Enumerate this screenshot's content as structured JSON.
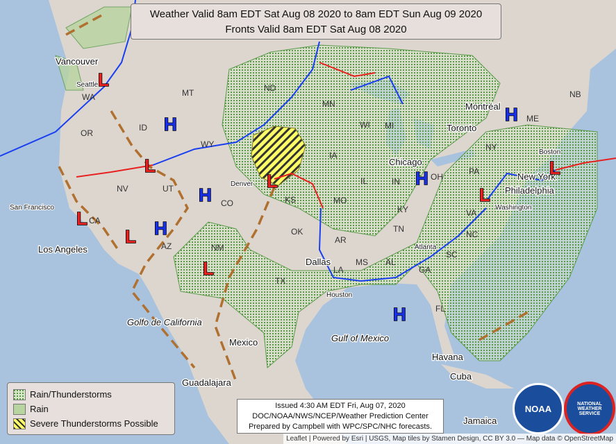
{
  "header": {
    "line1": "Weather Valid 8am EDT Sat Aug 08 2020 to 8am EDT Sun Aug 09 2020",
    "line2": "Fronts Valid 8am EDT Sat Aug 08 2020"
  },
  "legend": [
    {
      "label": "Rain/Thunderstorms"
    },
    {
      "label": "Rain"
    },
    {
      "label": "Severe Thunderstorms Possible"
    }
  ],
  "issued": [
    "Issued 4:30 AM EDT Fri, Aug 07, 2020",
    "DOC/NOAA/NWS/NCEP/Weather Prediction Center",
    "Prepared by Campbell with WPC/SPC/NHC forecasts."
  ],
  "attribution": "Leaflet | Powered by Esri | USGS, Map tiles by Stamen Design, CC BY 3.0 — Map data © OpenStreetMap",
  "cities": [
    "Vancouver",
    "Seattle",
    "San Francisco",
    "Los Angeles",
    "Denver",
    "Dallas",
    "Houston",
    "Chicago",
    "Toronto",
    "Montréal",
    "New York",
    "Philadelphia",
    "Washington",
    "Boston",
    "Atlanta",
    "Havana",
    "Jamaica",
    "Guadalajara",
    "Mexico",
    "Golfo de California",
    "Gulf of Mexico",
    "Cuba"
  ],
  "states": [
    "WA",
    "OR",
    "ID",
    "MT",
    "WY",
    "NV",
    "UT",
    "CO",
    "AZ",
    "NM",
    "ND",
    "KS",
    "OK",
    "TX",
    "MN",
    "IA",
    "MO",
    "AR",
    "LA",
    "MS",
    "AL",
    "TN",
    "KY",
    "IL",
    "IN",
    "OH",
    "MI",
    "WI",
    "PA",
    "NY",
    "GA",
    "SC",
    "NC",
    "VA",
    "FL",
    "NB",
    "ME",
    "CA"
  ],
  "pressure_centers": [
    "H",
    "H",
    "H",
    "H",
    "H",
    "H",
    "L",
    "L",
    "L",
    "L",
    "L",
    "L",
    "L",
    "L"
  ],
  "logos": [
    "NOAA",
    "NATIONAL WEATHER SERVICE"
  ]
}
